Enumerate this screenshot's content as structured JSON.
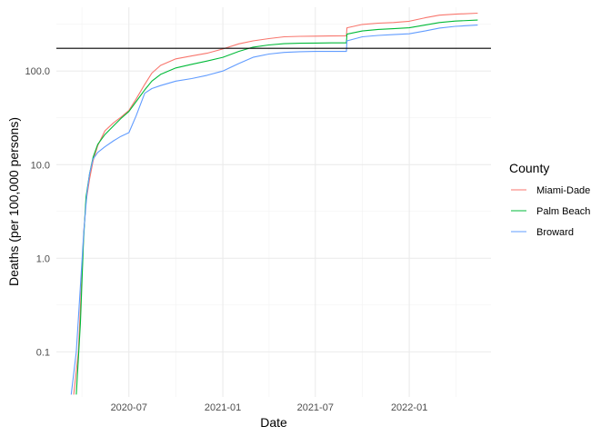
{
  "chart_data": {
    "type": "line",
    "title": "",
    "xlabel": "Date",
    "ylabel": "Deaths (per 100,000 persons)",
    "y_scale": "log10",
    "ylim": [
      0.033,
      480
    ],
    "xlim": [
      "2020-02-10",
      "2022-06-10"
    ],
    "x_ticks": [
      "2020-07-01",
      "2021-01-01",
      "2021-07-01",
      "2022-01-01"
    ],
    "x_tick_labels": [
      "2020-07",
      "2021-01",
      "2021-07",
      "2022-01"
    ],
    "y_ticks": [
      0.1,
      1,
      10,
      100
    ],
    "y_tick_labels": [
      "0.1",
      "1.0",
      "10.0",
      "100.0"
    ],
    "grid": true,
    "reference_line": {
      "y": 175,
      "color": "#000000"
    },
    "legend": {
      "title": "County",
      "position": "right",
      "items": [
        {
          "label": "Miami-Dade",
          "color": "#F8766D"
        },
        {
          "label": "Palm Beach",
          "color": "#00BA38"
        },
        {
          "label": "Broward",
          "color": "#619CFF"
        }
      ]
    },
    "series": [
      {
        "name": "Miami-Dade",
        "color": "#F8766D",
        "points": [
          [
            "2020-03-15",
            0.035
          ],
          [
            "2020-03-24",
            0.1
          ],
          [
            "2020-03-30",
            0.5
          ],
          [
            "2020-04-04",
            2.0
          ],
          [
            "2020-04-08",
            4.0
          ],
          [
            "2020-04-15",
            7.0
          ],
          [
            "2020-04-22",
            11.0
          ],
          [
            "2020-05-01",
            16.0
          ],
          [
            "2020-05-15",
            23.0
          ],
          [
            "2020-06-01",
            28.0
          ],
          [
            "2020-06-15",
            32.0
          ],
          [
            "2020-07-01",
            38.0
          ],
          [
            "2020-07-15",
            50.0
          ],
          [
            "2020-08-01",
            72.0
          ],
          [
            "2020-08-15",
            95.0
          ],
          [
            "2020-09-01",
            115.0
          ],
          [
            "2020-10-01",
            135.0
          ],
          [
            "2020-11-01",
            145.0
          ],
          [
            "2020-12-01",
            155.0
          ],
          [
            "2021-01-01",
            172.0
          ],
          [
            "2021-02-01",
            195.0
          ],
          [
            "2021-03-01",
            210.0
          ],
          [
            "2021-04-01",
            222.0
          ],
          [
            "2021-05-01",
            232.0
          ],
          [
            "2021-06-01",
            235.0
          ],
          [
            "2021-07-01",
            236.0
          ],
          [
            "2021-08-01",
            237.0
          ],
          [
            "2021-08-31",
            238.0
          ],
          [
            "2021-09-01",
            290.0
          ],
          [
            "2021-10-01",
            315.0
          ],
          [
            "2021-11-01",
            325.0
          ],
          [
            "2021-12-01",
            330.0
          ],
          [
            "2022-01-01",
            340.0
          ],
          [
            "2022-02-01",
            370.0
          ],
          [
            "2022-03-01",
            395.0
          ],
          [
            "2022-04-01",
            405.0
          ],
          [
            "2022-05-15",
            415.0
          ]
        ]
      },
      {
        "name": "Palm Beach",
        "color": "#00BA38",
        "points": [
          [
            "2020-03-20",
            0.035
          ],
          [
            "2020-03-28",
            0.2
          ],
          [
            "2020-04-03",
            1.5
          ],
          [
            "2020-04-08",
            4.5
          ],
          [
            "2020-04-15",
            8.0
          ],
          [
            "2020-04-22",
            12.0
          ],
          [
            "2020-05-01",
            16.5
          ],
          [
            "2020-05-15",
            21.0
          ],
          [
            "2020-06-01",
            26.0
          ],
          [
            "2020-06-15",
            31.0
          ],
          [
            "2020-07-01",
            37.0
          ],
          [
            "2020-07-15",
            47.0
          ],
          [
            "2020-08-01",
            63.0
          ],
          [
            "2020-08-15",
            78.0
          ],
          [
            "2020-09-01",
            92.0
          ],
          [
            "2020-10-01",
            108.0
          ],
          [
            "2020-11-01",
            118.0
          ],
          [
            "2020-12-01",
            128.0
          ],
          [
            "2021-01-01",
            140.0
          ],
          [
            "2021-02-01",
            162.0
          ],
          [
            "2021-03-01",
            180.0
          ],
          [
            "2021-04-01",
            190.0
          ],
          [
            "2021-05-01",
            196.0
          ],
          [
            "2021-06-01",
            198.0
          ],
          [
            "2021-07-01",
            199.0
          ],
          [
            "2021-08-01",
            200.0
          ],
          [
            "2021-08-31",
            200.0
          ],
          [
            "2021-09-01",
            248.0
          ],
          [
            "2021-10-01",
            268.0
          ],
          [
            "2021-11-01",
            278.0
          ],
          [
            "2021-12-01",
            283.0
          ],
          [
            "2022-01-01",
            290.0
          ],
          [
            "2022-02-01",
            310.0
          ],
          [
            "2022-03-01",
            330.0
          ],
          [
            "2022-04-01",
            342.0
          ],
          [
            "2022-05-15",
            350.0
          ]
        ]
      },
      {
        "name": "Broward",
        "color": "#619CFF",
        "points": [
          [
            "2020-03-10",
            0.035
          ],
          [
            "2020-03-20",
            0.1
          ],
          [
            "2020-03-28",
            0.5
          ],
          [
            "2020-04-04",
            2.0
          ],
          [
            "2020-04-10",
            5.0
          ],
          [
            "2020-04-15",
            8.0
          ],
          [
            "2020-04-22",
            11.5
          ],
          [
            "2020-05-01",
            13.5
          ],
          [
            "2020-05-15",
            15.5
          ],
          [
            "2020-06-01",
            18.0
          ],
          [
            "2020-06-15",
            20.0
          ],
          [
            "2020-07-01",
            22.0
          ],
          [
            "2020-07-15",
            33.0
          ],
          [
            "2020-08-01",
            58.0
          ],
          [
            "2020-08-15",
            65.0
          ],
          [
            "2020-09-01",
            70.0
          ],
          [
            "2020-10-01",
            78.0
          ],
          [
            "2020-11-01",
            83.0
          ],
          [
            "2020-12-01",
            90.0
          ],
          [
            "2021-01-01",
            100.0
          ],
          [
            "2021-02-01",
            120.0
          ],
          [
            "2021-03-01",
            140.0
          ],
          [
            "2021-04-01",
            152.0
          ],
          [
            "2021-05-01",
            158.0
          ],
          [
            "2021-06-01",
            161.0
          ],
          [
            "2021-07-01",
            162.0
          ],
          [
            "2021-08-01",
            162.0
          ],
          [
            "2021-08-31",
            162.0
          ],
          [
            "2021-09-01",
            210.0
          ],
          [
            "2021-10-01",
            232.0
          ],
          [
            "2021-11-01",
            240.0
          ],
          [
            "2021-12-01",
            245.0
          ],
          [
            "2022-01-01",
            250.0
          ],
          [
            "2022-02-01",
            268.0
          ],
          [
            "2022-03-01",
            288.0
          ],
          [
            "2022-04-01",
            300.0
          ],
          [
            "2022-05-15",
            310.0
          ]
        ]
      }
    ]
  }
}
